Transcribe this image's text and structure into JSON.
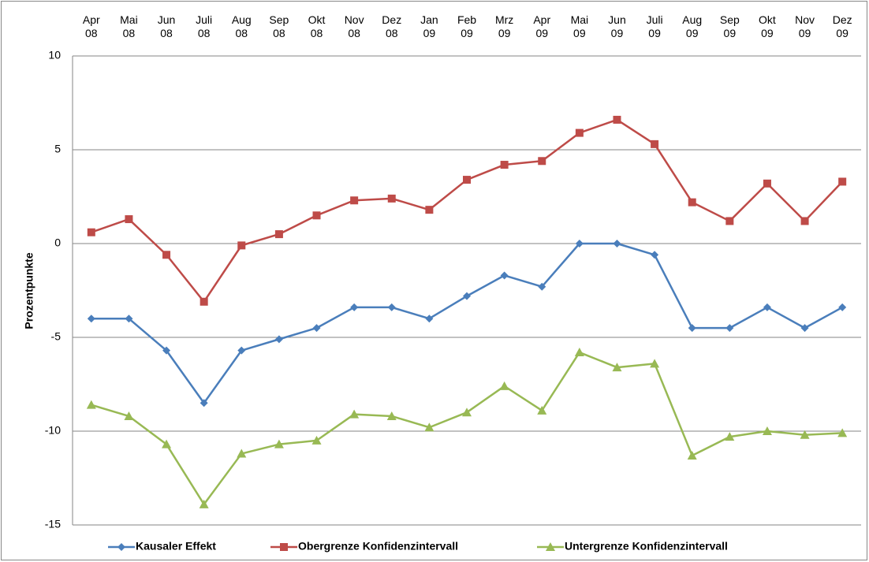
{
  "chart_data": {
    "type": "line",
    "y_label": "Prozentpunkte",
    "categories": [
      "Apr 08",
      "Mai 08",
      "Jun 08",
      "Juli 08",
      "Aug 08",
      "Sep 08",
      "Okt 08",
      "Nov 08",
      "Dez 08",
      "Jan 09",
      "Feb 09",
      "Mrz 09",
      "Apr 09",
      "Mai 09",
      "Jun 09",
      "Juli 09",
      "Aug 09",
      "Sep 09",
      "Okt 09",
      "Nov 09",
      "Dez 09"
    ],
    "series": [
      {
        "name": "Kausaler Effekt",
        "color": "#4a7ebb",
        "marker": "diamond",
        "values": [
          -4.0,
          -4.0,
          -5.7,
          -8.5,
          -5.7,
          -5.1,
          -4.5,
          -3.4,
          -3.4,
          -4.0,
          -2.8,
          -1.7,
          -2.3,
          0,
          0,
          -0.6,
          -4.5,
          -4.5,
          -3.4,
          -4.5,
          -3.4
        ]
      },
      {
        "name": "Obergrenze Konfidenzintervall",
        "color": "#be4b48",
        "marker": "square",
        "values": [
          0.6,
          1.3,
          -0.6,
          -3.1,
          -0.1,
          0.5,
          1.5,
          2.3,
          2.4,
          1.8,
          3.4,
          4.2,
          4.4,
          5.9,
          6.6,
          5.3,
          2.2,
          1.2,
          3.2,
          1.2,
          3.3
        ]
      },
      {
        "name": "Untergrenze Konfidenzintervall",
        "color": "#98b954",
        "marker": "triangle",
        "values": [
          -8.6,
          -9.2,
          -10.7,
          -13.9,
          -11.2,
          -10.7,
          -10.5,
          -9.1,
          -9.2,
          -9.8,
          -9.0,
          -7.6,
          -8.9,
          -5.8,
          -6.6,
          -6.4,
          -11.3,
          -10.3,
          -10.0,
          -10.2,
          -10.1
        ]
      }
    ],
    "ylim": [
      -15,
      10
    ],
    "yticks": [
      -15,
      -10,
      -5,
      0,
      5,
      10
    ],
    "grid": true,
    "legend": "bottom"
  }
}
